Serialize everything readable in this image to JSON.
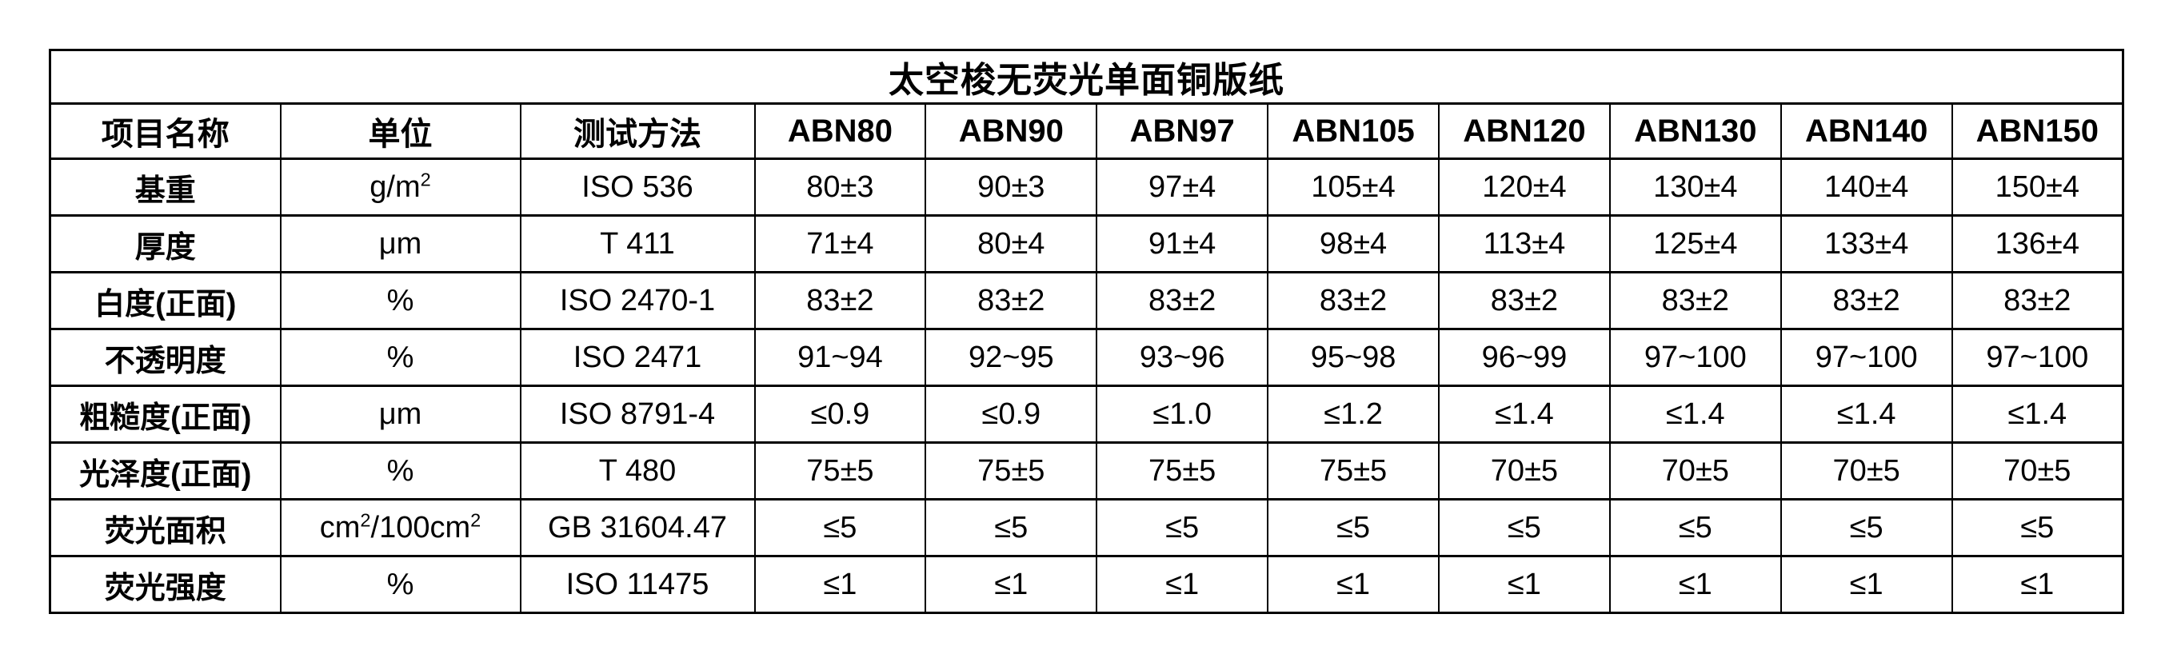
{
  "table": {
    "title": "太空梭无荧光单面铜版纸",
    "columns": [
      "项目名称",
      "单位",
      "测试方法",
      "ABN80",
      "ABN90",
      "ABN97",
      "ABN105",
      "ABN120",
      "ABN130",
      "ABN140",
      "ABN150"
    ],
    "rows": [
      {
        "name": "基重",
        "unit": "g/m²",
        "method": "ISO 536",
        "values": [
          "80±3",
          "90±3",
          "97±4",
          "105±4",
          "120±4",
          "130±4",
          "140±4",
          "150±4"
        ]
      },
      {
        "name": "厚度",
        "unit": "μm",
        "method": "T 411",
        "values": [
          "71±4",
          "80±4",
          "91±4",
          "98±4",
          "113±4",
          "125±4",
          "133±4",
          "136±4"
        ]
      },
      {
        "name": "白度(正面)",
        "unit": "%",
        "method": "ISO 2470-1",
        "values": [
          "83±2",
          "83±2",
          "83±2",
          "83±2",
          "83±2",
          "83±2",
          "83±2",
          "83±2"
        ]
      },
      {
        "name": "不透明度",
        "unit": "%",
        "method": "ISO 2471",
        "values": [
          "91~94",
          "92~95",
          "93~96",
          "95~98",
          "96~99",
          "97~100",
          "97~100",
          "97~100"
        ]
      },
      {
        "name": "粗糙度(正面)",
        "unit": "μm",
        "method": "ISO 8791-4",
        "values": [
          "≤0.9",
          "≤0.9",
          "≤1.0",
          "≤1.2",
          "≤1.4",
          "≤1.4",
          "≤1.4",
          "≤1.4"
        ]
      },
      {
        "name": "光泽度(正面)",
        "unit": "%",
        "method": "T 480",
        "values": [
          "75±5",
          "75±5",
          "75±5",
          "75±5",
          "70±5",
          "70±5",
          "70±5",
          "70±5"
        ]
      },
      {
        "name": "荧光面积",
        "unit": "cm²/100cm²",
        "method": "GB 31604.47",
        "values": [
          "≤5",
          "≤5",
          "≤5",
          "≤5",
          "≤5",
          "≤5",
          "≤5",
          "≤5"
        ]
      },
      {
        "name": "荧光强度",
        "unit": "%",
        "method": "ISO 11475",
        "values": [
          "≤1",
          "≤1",
          "≤1",
          "≤1",
          "≤1",
          "≤1",
          "≤1",
          "≤1"
        ]
      }
    ]
  }
}
